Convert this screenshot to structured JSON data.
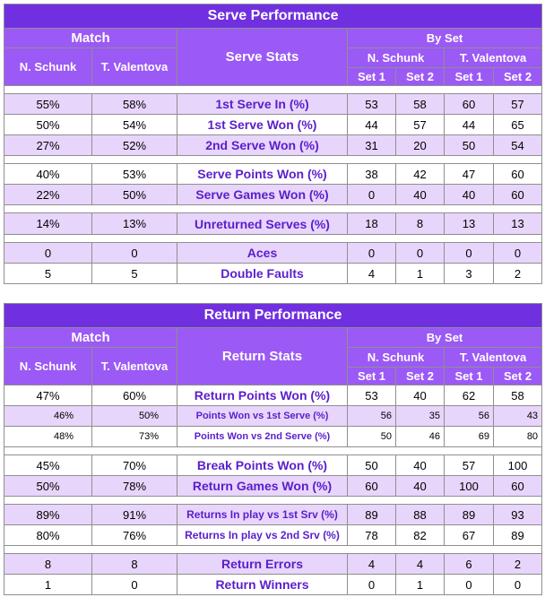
{
  "serve": {
    "title": "Serve Performance",
    "match_label": "Match",
    "stats_label": "Serve Stats",
    "byset_label": "By Set",
    "player1": "N. Schunk",
    "player2": "T. Valentova",
    "set1": "Set 1",
    "set2": "Set 2",
    "rows": [
      {
        "p1": "55%",
        "p2": "58%",
        "label": "1st Serve In (%)",
        "s": [
          "53",
          "58",
          "60",
          "57"
        ]
      },
      {
        "p1": "50%",
        "p2": "54%",
        "label": "1st Serve Won (%)",
        "s": [
          "44",
          "57",
          "44",
          "65"
        ]
      },
      {
        "p1": "27%",
        "p2": "52%",
        "label": "2nd Serve Won (%)",
        "s": [
          "31",
          "20",
          "50",
          "54"
        ]
      },
      {
        "p1": "40%",
        "p2": "53%",
        "label": "Serve Points Won (%)",
        "s": [
          "38",
          "42",
          "47",
          "60"
        ]
      },
      {
        "p1": "22%",
        "p2": "50%",
        "label": "Serve Games Won (%)",
        "s": [
          "0",
          "40",
          "40",
          "60"
        ]
      },
      {
        "p1": "14%",
        "p2": "13%",
        "label": "Unreturned Serves (%)",
        "s": [
          "18",
          "8",
          "13",
          "13"
        ]
      },
      {
        "p1": "0",
        "p2": "0",
        "label": "Aces",
        "s": [
          "0",
          "0",
          "0",
          "0"
        ]
      },
      {
        "p1": "5",
        "p2": "5",
        "label": "Double Faults",
        "s": [
          "4",
          "1",
          "3",
          "2"
        ]
      }
    ]
  },
  "return": {
    "title": "Return Performance",
    "match_label": "Match",
    "stats_label": "Return Stats",
    "byset_label": "By Set",
    "player1": "N. Schunk",
    "player2": "T. Valentova",
    "set1": "Set 1",
    "set2": "Set 2",
    "rows": [
      {
        "p1": "47%",
        "p2": "60%",
        "label": "Return Points Won (%)",
        "s": [
          "53",
          "40",
          "62",
          "58"
        ]
      },
      {
        "p1": "46%",
        "p2": "50%",
        "label": "Points Won vs 1st Serve (%)",
        "s": [
          "56",
          "35",
          "56",
          "43"
        ]
      },
      {
        "p1": "48%",
        "p2": "73%",
        "label": "Points Won vs 2nd Serve (%)",
        "s": [
          "50",
          "46",
          "69",
          "80"
        ]
      },
      {
        "p1": "45%",
        "p2": "70%",
        "label": "Break Points Won (%)",
        "s": [
          "50",
          "40",
          "57",
          "100"
        ]
      },
      {
        "p1": "50%",
        "p2": "78%",
        "label": "Return Games Won (%)",
        "s": [
          "60",
          "40",
          "100",
          "60"
        ]
      },
      {
        "p1": "89%",
        "p2": "91%",
        "label": "Returns In play vs 1st Srv (%)",
        "s": [
          "89",
          "88",
          "89",
          "93"
        ]
      },
      {
        "p1": "80%",
        "p2": "76%",
        "label": "Returns In play vs 2nd Srv (%)",
        "s": [
          "78",
          "82",
          "67",
          "89"
        ]
      },
      {
        "p1": "8",
        "p2": "8",
        "label": "Return Errors",
        "s": [
          "4",
          "4",
          "6",
          "2"
        ]
      },
      {
        "p1": "1",
        "p2": "0",
        "label": "Return Winners",
        "s": [
          "0",
          "1",
          "0",
          "0"
        ]
      }
    ]
  }
}
